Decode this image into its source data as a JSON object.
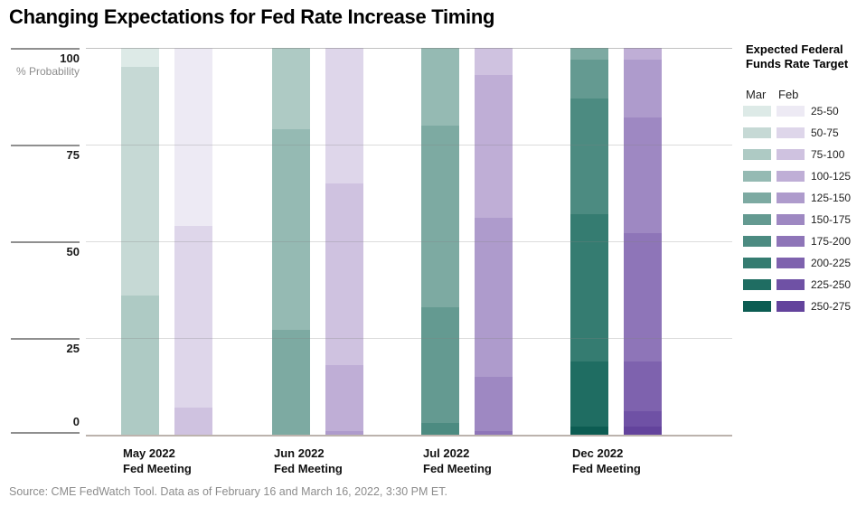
{
  "title": "Changing Expectations for Fed Rate Increase Timing",
  "y_axis": {
    "unit_label": "% Probability",
    "ticks": [
      100,
      75,
      50,
      25,
      0
    ]
  },
  "legend": {
    "title_line1": "Expected Federal",
    "title_line2": "Funds Rate Target",
    "columns": [
      "Mar",
      "Feb"
    ],
    "ranges": [
      "25-50",
      "50-75",
      "75-100",
      "100-125",
      "125-150",
      "150-175",
      "175-200",
      "200-225",
      "225-250",
      "250-275"
    ],
    "colors": {
      "Mar": [
        "#ddeae7",
        "#c6d9d5",
        "#aecac4",
        "#95bab3",
        "#7daaa2",
        "#649a91",
        "#4c8b81",
        "#357c71",
        "#1f6d62",
        "#0c5c52"
      ],
      "Feb": [
        "#edeaf4",
        "#ded6ea",
        "#cfc2e0",
        "#bfaed6",
        "#ae9bcc",
        "#9e88c2",
        "#8e75b8",
        "#7e62ae",
        "#6f51a5",
        "#63439c"
      ]
    }
  },
  "source": "Source: CME FedWatch Tool. Data as of February 16 and March 16, 2022, 3:30 PM ET.",
  "chart_data": {
    "type": "bar",
    "stacked": true,
    "ylim": [
      0,
      100
    ],
    "ylabel": "% Probability",
    "grid": "horizontal",
    "legend_position": "right",
    "series_order_note": "segments listed top-to-bottom of each bar; lowest rate range at top",
    "groups": [
      {
        "label_line1": "May 2022",
        "label_line2": "Fed Meeting",
        "bars": [
          {
            "series": "Mar",
            "segments": [
              {
                "range": "25-50",
                "value": 5
              },
              {
                "range": "50-75",
                "value": 59
              },
              {
                "range": "75-100",
                "value": 36
              }
            ]
          },
          {
            "series": "Feb",
            "segments": [
              {
                "range": "25-50",
                "value": 46
              },
              {
                "range": "50-75",
                "value": 47
              },
              {
                "range": "75-100",
                "value": 7
              }
            ]
          }
        ]
      },
      {
        "label_line1": "Jun 2022",
        "label_line2": "Fed Meeting",
        "bars": [
          {
            "series": "Mar",
            "segments": [
              {
                "range": "75-100",
                "value": 21
              },
              {
                "range": "100-125",
                "value": 52
              },
              {
                "range": "125-150",
                "value": 27
              }
            ]
          },
          {
            "series": "Feb",
            "segments": [
              {
                "range": "50-75",
                "value": 35
              },
              {
                "range": "75-100",
                "value": 47
              },
              {
                "range": "100-125",
                "value": 17
              },
              {
                "range": "125-150",
                "value": 1
              }
            ]
          }
        ]
      },
      {
        "label_line1": "Jul 2022",
        "label_line2": "Fed Meeting",
        "bars": [
          {
            "series": "Mar",
            "segments": [
              {
                "range": "100-125",
                "value": 20
              },
              {
                "range": "125-150",
                "value": 47
              },
              {
                "range": "150-175",
                "value": 30
              },
              {
                "range": "175-200",
                "value": 3
              }
            ]
          },
          {
            "series": "Feb",
            "segments": [
              {
                "range": "75-100",
                "value": 7
              },
              {
                "range": "100-125",
                "value": 37
              },
              {
                "range": "125-150",
                "value": 41
              },
              {
                "range": "150-175",
                "value": 14
              },
              {
                "range": "175-200",
                "value": 1
              }
            ]
          }
        ]
      },
      {
        "label_line1": "Dec 2022",
        "label_line2": "Fed Meeting",
        "bars": [
          {
            "series": "Mar",
            "segments": [
              {
                "range": "125-150",
                "value": 3
              },
              {
                "range": "150-175",
                "value": 10
              },
              {
                "range": "175-200",
                "value": 30
              },
              {
                "range": "200-225",
                "value": 38
              },
              {
                "range": "225-250",
                "value": 17
              },
              {
                "range": "250-275",
                "value": 2
              }
            ]
          },
          {
            "series": "Feb",
            "segments": [
              {
                "range": "100-125",
                "value": 3
              },
              {
                "range": "125-150",
                "value": 15
              },
              {
                "range": "150-175",
                "value": 30
              },
              {
                "range": "175-200",
                "value": 33
              },
              {
                "range": "200-225",
                "value": 13
              },
              {
                "range": "225-250",
                "value": 4
              },
              {
                "range": "250-275",
                "value": 2
              }
            ]
          }
        ]
      }
    ]
  }
}
